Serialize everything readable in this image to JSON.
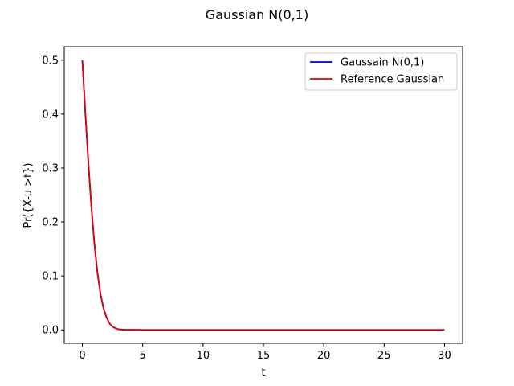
{
  "chart_data": {
    "type": "line",
    "title": "Gaussian N(0,1)",
    "xlabel": "t",
    "ylabel": "Pr({X-u >t})",
    "xlim": [
      -1.5,
      31.5
    ],
    "ylim": [
      -0.025,
      0.525
    ],
    "xticks": [
      0,
      5,
      10,
      15,
      20,
      25,
      30
    ],
    "yticks": [
      0.0,
      0.1,
      0.2,
      0.3,
      0.4,
      0.5
    ],
    "xtick_labels": [
      "0",
      "5",
      "10",
      "15",
      "20",
      "25",
      "30"
    ],
    "ytick_labels": [
      "0.0",
      "0.1",
      "0.2",
      "0.3",
      "0.4",
      "0.5"
    ],
    "grid": false,
    "legend_position": "top-right",
    "series": [
      {
        "name": "Gaussain N(0,1)",
        "color": "#0000cc",
        "x": [
          0,
          0.25,
          0.5,
          0.75,
          1.0,
          1.25,
          1.5,
          1.75,
          2.0,
          2.25,
          2.5,
          2.75,
          3.0,
          3.5,
          4.0,
          5.0,
          10,
          15,
          20,
          25,
          30
        ],
        "y": [
          0.5,
          0.401,
          0.309,
          0.227,
          0.159,
          0.106,
          0.067,
          0.04,
          0.023,
          0.012,
          0.006,
          0.003,
          0.001,
          0.0002,
          3e-05,
          0.0,
          0.0,
          0.0,
          0.0,
          0.0,
          0.0
        ]
      },
      {
        "name": "Reference Gaussian",
        "color": "#e00000",
        "x": [
          0,
          0.25,
          0.5,
          0.75,
          1.0,
          1.25,
          1.5,
          1.75,
          2.0,
          2.25,
          2.5,
          2.75,
          3.0,
          3.5,
          4.0,
          5.0,
          10,
          15,
          20,
          25,
          30
        ],
        "y": [
          0.5,
          0.401,
          0.309,
          0.227,
          0.159,
          0.106,
          0.067,
          0.04,
          0.023,
          0.012,
          0.006,
          0.003,
          0.001,
          0.0002,
          3e-05,
          0.0,
          0.0,
          0.0,
          0.0,
          0.0,
          0.0
        ]
      }
    ]
  }
}
